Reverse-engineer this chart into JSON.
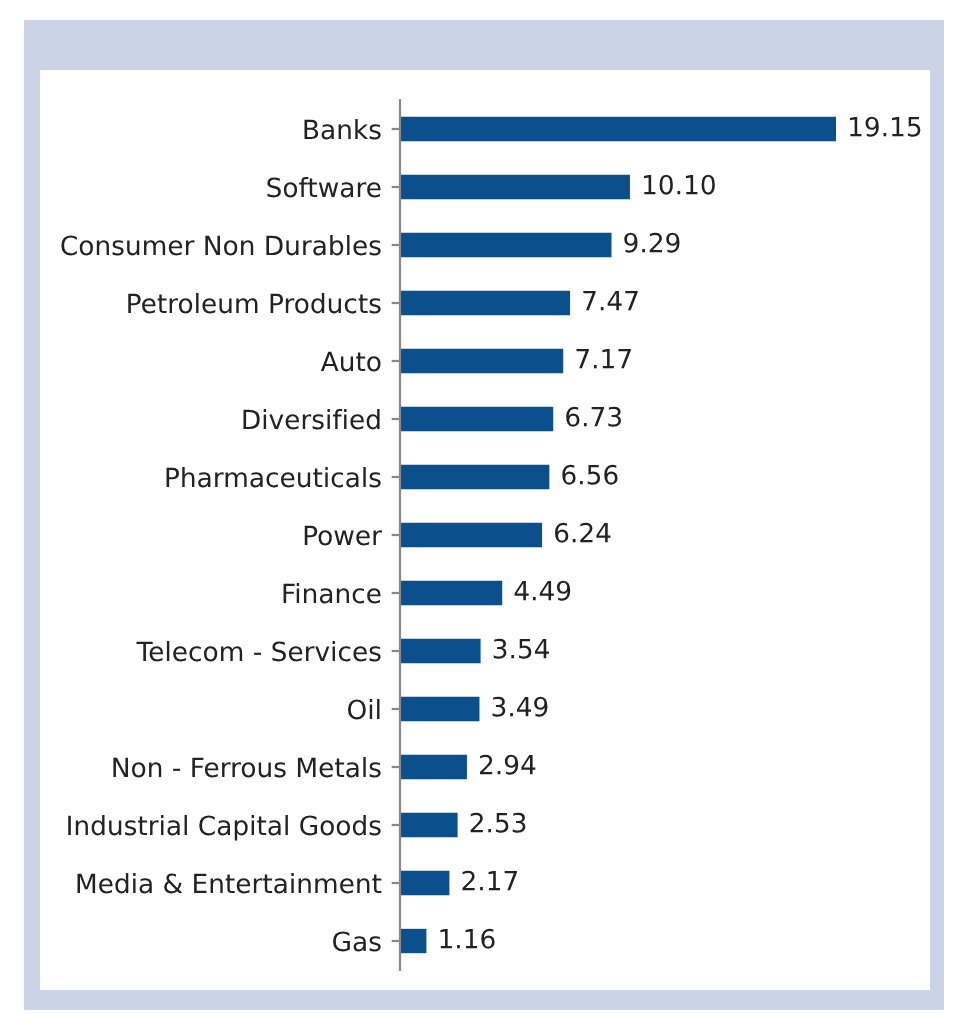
{
  "chart_data": {
    "type": "bar",
    "orientation": "horizontal",
    "categories": [
      "Banks",
      "Software",
      "Consumer Non Durables",
      "Petroleum Products",
      "Auto",
      "Diversified",
      "Pharmaceuticals",
      "Power",
      "Finance",
      "Telecom - Services",
      "Oil",
      "Non - Ferrous Metals",
      "Industrial Capital Goods",
      "Media & Entertainment",
      "Gas"
    ],
    "values": [
      19.15,
      10.1,
      9.29,
      7.47,
      7.17,
      6.73,
      6.56,
      6.24,
      4.49,
      3.54,
      3.49,
      2.94,
      2.53,
      2.17,
      1.16
    ],
    "value_labels": [
      "19.15",
      "10.10",
      "9.29",
      "7.47",
      "7.17",
      "6.73",
      "6.56",
      "6.24",
      "4.49",
      "3.54",
      "3.49",
      "2.94",
      "2.53",
      "2.17",
      "1.16"
    ],
    "color": "#0b4f8c",
    "grid": false,
    "legend": false
  }
}
